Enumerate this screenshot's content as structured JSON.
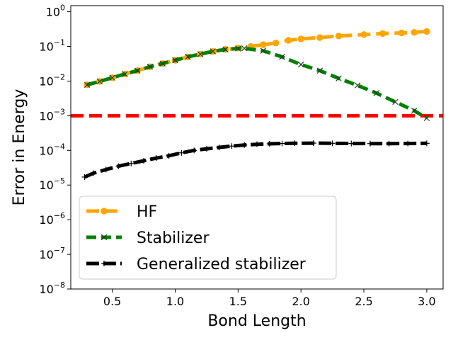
{
  "chart_data": {
    "type": "line",
    "xlabel": "Bond Length",
    "ylabel": "Error in Energy",
    "yscale": "log",
    "xlim": [
      0.17,
      3.13
    ],
    "ylim": [
      1e-08,
      1.5
    ],
    "xticks": [
      "0.5",
      "1.0",
      "1.5",
      "2.0",
      "2.5",
      "3.0"
    ],
    "yticks": [
      {
        "base": "10",
        "exp": "0"
      },
      {
        "base": "10",
        "exp": "−1"
      },
      {
        "base": "10",
        "exp": "−2"
      },
      {
        "base": "10",
        "exp": "−3"
      },
      {
        "base": "10",
        "exp": "−4"
      },
      {
        "base": "10",
        "exp": "−5"
      },
      {
        "base": "10",
        "exp": "−6"
      },
      {
        "base": "10",
        "exp": "−7"
      },
      {
        "base": "10",
        "exp": "−8"
      }
    ],
    "threshold": {
      "value": 0.001,
      "color": "#ff0000"
    },
    "legend_position": "lower-left",
    "series": [
      {
        "name": "HF",
        "color": "#ffa500",
        "marker": "circle",
        "x": [
          0.3,
          0.4,
          0.5,
          0.6,
          0.7,
          0.8,
          0.9,
          1.0,
          1.1,
          1.2,
          1.3,
          1.4,
          1.5,
          1.6,
          1.7,
          1.8,
          1.9,
          2.0,
          2.15,
          2.3,
          2.5,
          2.65,
          2.8,
          2.9,
          3.0
        ],
        "y": [
          0.0078,
          0.0098,
          0.0125,
          0.016,
          0.02,
          0.026,
          0.032,
          0.04,
          0.05,
          0.06,
          0.072,
          0.082,
          0.09,
          0.1,
          0.112,
          0.125,
          0.15,
          0.165,
          0.18,
          0.2,
          0.22,
          0.235,
          0.245,
          0.255,
          0.27
        ]
      },
      {
        "name": "Stabilizer",
        "color": "#008000",
        "marker": "x",
        "x": [
          0.3,
          0.4,
          0.5,
          0.6,
          0.7,
          0.8,
          0.9,
          1.0,
          1.1,
          1.2,
          1.3,
          1.4,
          1.5,
          1.55,
          1.7,
          1.85,
          2.0,
          2.15,
          2.3,
          2.45,
          2.6,
          2.75,
          2.9,
          3.0
        ],
        "y": [
          0.0078,
          0.0098,
          0.0125,
          0.016,
          0.02,
          0.026,
          0.032,
          0.04,
          0.05,
          0.06,
          0.072,
          0.082,
          0.087,
          0.088,
          0.075,
          0.05,
          0.03,
          0.02,
          0.012,
          0.0075,
          0.0045,
          0.0025,
          0.0014,
          0.00085
        ]
      },
      {
        "name": "Generalized stabilizer",
        "color": "#000000",
        "marker": "plus",
        "x": [
          0.28,
          0.35,
          0.45,
          0.55,
          0.65,
          0.75,
          0.85,
          0.95,
          1.05,
          1.15,
          1.25,
          1.35,
          1.45,
          1.55,
          1.65,
          1.75,
          1.85,
          1.95,
          2.1,
          2.25,
          2.4,
          2.55,
          2.7,
          2.85,
          3.0
        ],
        "y": [
          1.7e-05,
          2.2e-05,
          2.8e-05,
          3.5e-05,
          4.2e-05,
          5e-05,
          6e-05,
          7e-05,
          8.5e-05,
          0.0001,
          0.000111,
          0.000122,
          0.000133,
          0.000143,
          0.00015,
          0.000155,
          0.000158,
          0.00016,
          0.000162,
          0.00016,
          0.000158,
          0.000157,
          0.000157,
          0.000158,
          0.00016
        ]
      }
    ]
  }
}
